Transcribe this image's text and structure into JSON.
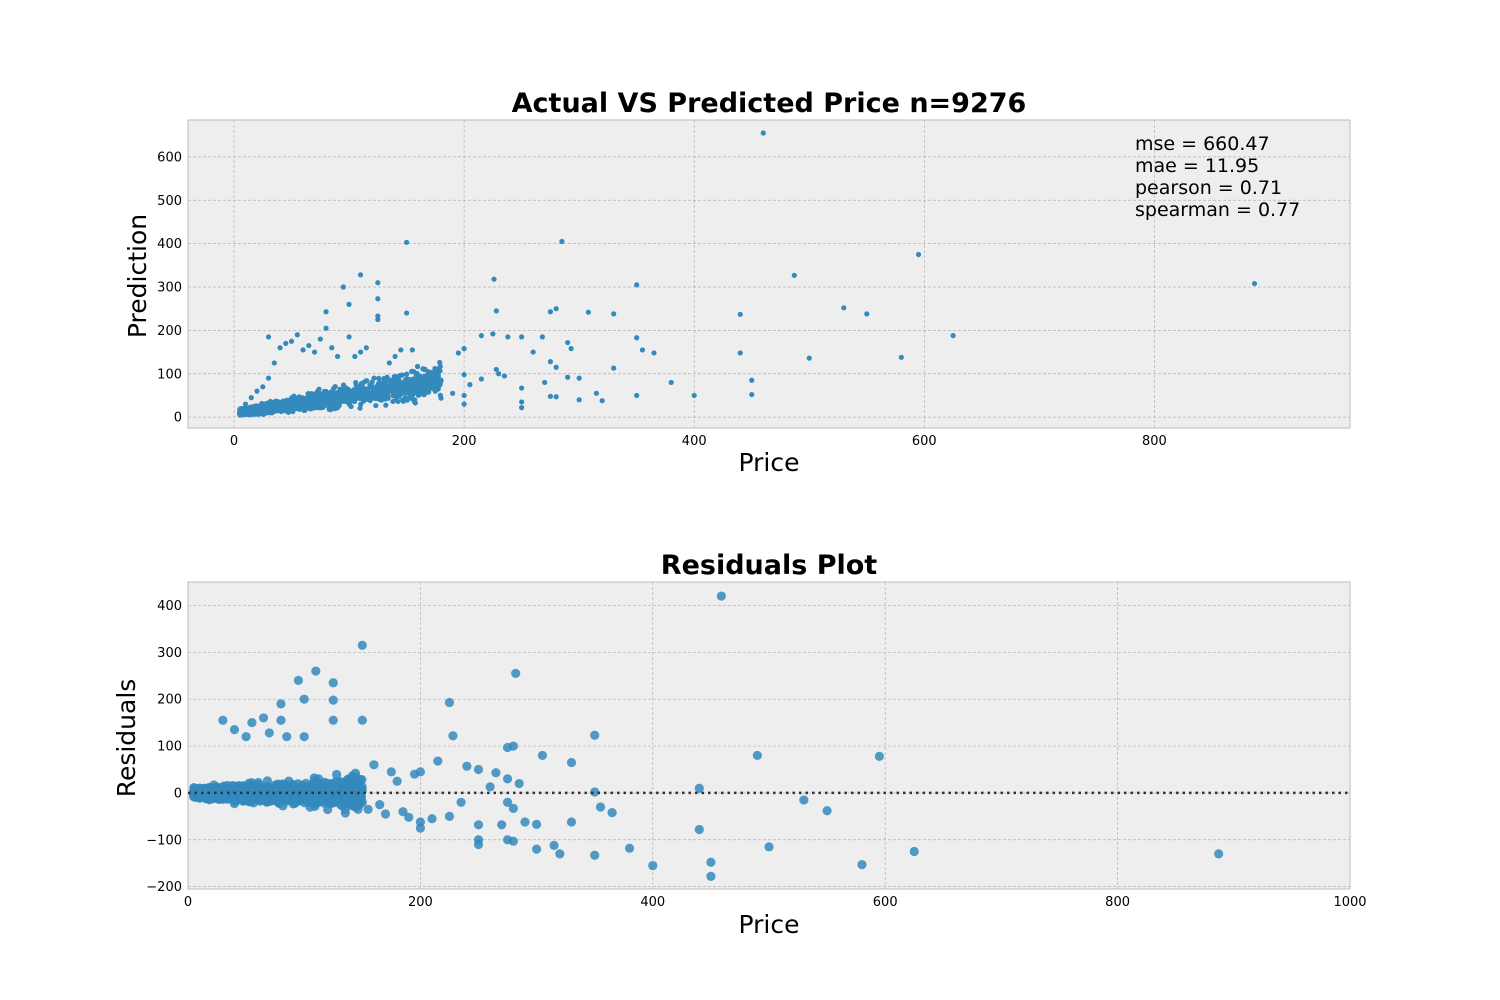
{
  "chart_data": [
    {
      "type": "scatter",
      "title": "Actual VS Predicted Price n=9276",
      "xlabel": "Price",
      "ylabel": "Prediction",
      "xlim": [
        -40,
        970
      ],
      "ylim": [
        -25,
        685
      ],
      "xticks": [
        0,
        200,
        400,
        600,
        800
      ],
      "yticks": [
        0,
        100,
        200,
        300,
        400,
        500,
        600
      ],
      "grid": true,
      "color": "#348ABD",
      "annotations": [
        "mse = 660.47",
        "mae = 11.95",
        "pearson = 0.71",
        "spearman = 0.77"
      ],
      "points": [
        [
          460,
          655
        ],
        [
          150,
          403
        ],
        [
          285,
          405
        ],
        [
          595,
          375
        ],
        [
          887,
          308
        ],
        [
          487,
          327
        ],
        [
          110,
          328
        ],
        [
          125,
          310
        ],
        [
          95,
          300
        ],
        [
          226,
          318
        ],
        [
          350,
          305
        ],
        [
          80,
          243
        ],
        [
          150,
          240
        ],
        [
          100,
          260
        ],
        [
          125,
          273
        ],
        [
          228,
          245
        ],
        [
          275,
          243
        ],
        [
          280,
          250
        ],
        [
          308,
          242
        ],
        [
          330,
          238
        ],
        [
          440,
          237
        ],
        [
          530,
          252
        ],
        [
          550,
          238
        ],
        [
          625,
          188
        ],
        [
          580,
          138
        ],
        [
          500,
          136
        ],
        [
          440,
          148
        ],
        [
          350,
          183
        ],
        [
          355,
          155
        ],
        [
          365,
          148
        ],
        [
          290,
          172
        ],
        [
          293,
          158
        ],
        [
          268,
          185
        ],
        [
          275,
          128
        ],
        [
          280,
          115
        ],
        [
          260,
          150
        ],
        [
          250,
          185
        ],
        [
          238,
          185
        ],
        [
          225,
          192
        ],
        [
          215,
          188
        ],
        [
          200,
          158
        ],
        [
          195,
          148
        ],
        [
          330,
          113
        ],
        [
          300,
          90
        ],
        [
          290,
          92
        ],
        [
          270,
          80
        ],
        [
          228,
          110
        ],
        [
          230,
          100
        ],
        [
          235,
          95
        ],
        [
          215,
          88
        ],
        [
          205,
          75
        ],
        [
          200,
          98
        ],
        [
          380,
          80
        ],
        [
          450,
          85
        ],
        [
          400,
          50
        ],
        [
          450,
          52
        ],
        [
          350,
          50
        ],
        [
          320,
          38
        ],
        [
          315,
          55
        ],
        [
          300,
          40
        ],
        [
          280,
          47
        ],
        [
          275,
          48
        ],
        [
          250,
          67
        ],
        [
          250,
          35
        ],
        [
          250,
          22
        ],
        [
          200,
          30
        ],
        [
          200,
          50
        ],
        [
          190,
          55
        ],
        [
          180,
          85
        ],
        [
          175,
          60
        ],
        [
          170,
          78
        ],
        [
          165,
          70
        ],
        [
          160,
          95
        ],
        [
          155,
          155
        ],
        [
          145,
          155
        ],
        [
          140,
          140
        ],
        [
          135,
          125
        ],
        [
          125,
          233
        ],
        [
          125,
          225
        ],
        [
          115,
          160
        ],
        [
          110,
          150
        ],
        [
          105,
          140
        ],
        [
          100,
          185
        ],
        [
          90,
          140
        ],
        [
          85,
          160
        ],
        [
          80,
          205
        ],
        [
          75,
          180
        ],
        [
          70,
          150
        ],
        [
          65,
          165
        ],
        [
          60,
          155
        ],
        [
          55,
          190
        ],
        [
          50,
          175
        ],
        [
          45,
          170
        ],
        [
          40,
          160
        ],
        [
          30,
          185
        ],
        [
          35,
          125
        ],
        [
          20,
          60
        ],
        [
          25,
          70
        ],
        [
          30,
          90
        ],
        [
          15,
          45
        ],
        [
          10,
          30
        ]
      ],
      "cluster_note": "dense mass of points for Price 5-180 and Prediction 5-130"
    },
    {
      "type": "scatter",
      "title": "Residuals Plot",
      "xlabel": "Price",
      "ylabel": "Residuals",
      "xlim": [
        0,
        1000
      ],
      "ylim": [
        -205,
        450
      ],
      "xticks": [
        0,
        200,
        400,
        600,
        800,
        1000
      ],
      "yticks": [
        -200,
        -100,
        0,
        100,
        200,
        300,
        400
      ],
      "xtick_labels": [
        "0",
        "200",
        "400",
        "600",
        "800",
        "1000"
      ],
      "ytick_labels": [
        "−200",
        "−100",
        "0",
        "100",
        "200",
        "300",
        "400"
      ],
      "grid": true,
      "color": "#348ABD",
      "reference_line": 0,
      "points": [
        [
          459,
          420
        ],
        [
          150,
          315
        ],
        [
          282,
          255
        ],
        [
          110,
          260
        ],
        [
          95,
          240
        ],
        [
          125,
          235
        ],
        [
          100,
          200
        ],
        [
          125,
          198
        ],
        [
          225,
          193
        ],
        [
          30,
          155
        ],
        [
          55,
          150
        ],
        [
          80,
          155
        ],
        [
          125,
          155
        ],
        [
          150,
          155
        ],
        [
          80,
          190
        ],
        [
          65,
          160
        ],
        [
          70,
          128
        ],
        [
          40,
          135
        ],
        [
          50,
          120
        ],
        [
          85,
          120
        ],
        [
          100,
          120
        ],
        [
          228,
          122
        ],
        [
          350,
          123
        ],
        [
          275,
          97
        ],
        [
          280,
          100
        ],
        [
          305,
          80
        ],
        [
          330,
          65
        ],
        [
          490,
          80
        ],
        [
          595,
          78
        ],
        [
          215,
          68
        ],
        [
          240,
          57
        ],
        [
          250,
          50
        ],
        [
          265,
          43
        ],
        [
          275,
          30
        ],
        [
          285,
          20
        ],
        [
          260,
          13
        ],
        [
          440,
          10
        ],
        [
          350,
          2
        ],
        [
          355,
          -30
        ],
        [
          365,
          -42
        ],
        [
          330,
          -62
        ],
        [
          290,
          -62
        ],
        [
          300,
          -67
        ],
        [
          250,
          -68
        ],
        [
          270,
          -68
        ],
        [
          225,
          -50
        ],
        [
          210,
          -55
        ],
        [
          200,
          -62
        ],
        [
          200,
          -75
        ],
        [
          235,
          -20
        ],
        [
          275,
          -20
        ],
        [
          280,
          -33
        ],
        [
          250,
          -100
        ],
        [
          250,
          -110
        ],
        [
          275,
          -100
        ],
        [
          280,
          -103
        ],
        [
          300,
          -120
        ],
        [
          315,
          -112
        ],
        [
          320,
          -130
        ],
        [
          350,
          -133
        ],
        [
          380,
          -118
        ],
        [
          400,
          -155
        ],
        [
          440,
          -78
        ],
        [
          450,
          -148
        ],
        [
          450,
          -178
        ],
        [
          500,
          -115
        ],
        [
          530,
          -15
        ],
        [
          550,
          -38
        ],
        [
          580,
          -153
        ],
        [
          625,
          -125
        ],
        [
          887,
          -130
        ],
        [
          195,
          40
        ],
        [
          200,
          45
        ],
        [
          180,
          25
        ],
        [
          175,
          45
        ],
        [
          160,
          60
        ],
        [
          165,
          -25
        ],
        [
          170,
          -45
        ],
        [
          185,
          -40
        ],
        [
          190,
          -52
        ],
        [
          155,
          -35
        ],
        [
          150,
          -20
        ]
      ],
      "cluster_note": "dense mass of points for Price 5-150 and Residuals -50 to 70"
    }
  ]
}
